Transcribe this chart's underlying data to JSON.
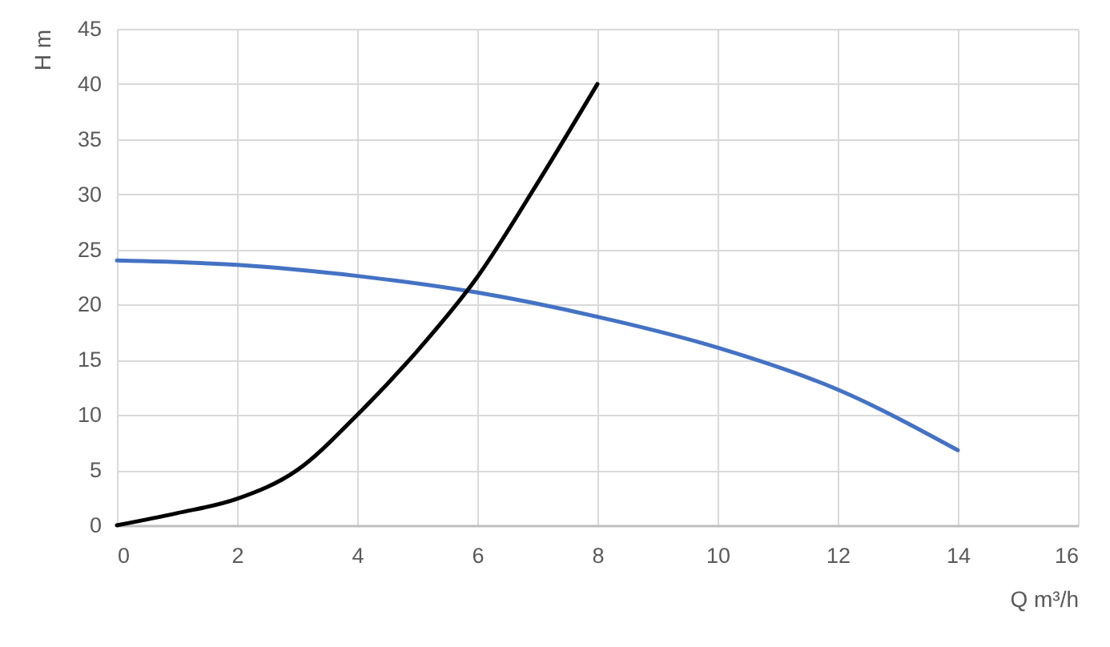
{
  "chart_data": {
    "type": "line",
    "xlabel": "Q m³/h",
    "ylabel": "H m",
    "series": [
      {
        "color": "#4472c4",
        "x": [
          0,
          2,
          4,
          6,
          8,
          10,
          12,
          14
        ],
        "values": [
          24,
          23.6,
          22.6,
          21.1,
          18.9,
          16.1,
          12.3,
          6.8
        ]
      },
      {
        "color": "#000000",
        "x": [
          0,
          1,
          2,
          3,
          4,
          5,
          6,
          7,
          8
        ],
        "values": [
          0,
          1.1,
          2.4,
          5.0,
          10,
          15.8,
          22.5,
          31,
          40
        ]
      }
    ],
    "xlim": [
      0,
      16
    ],
    "xticks": [
      0,
      2,
      4,
      6,
      8,
      10,
      12,
      14,
      16
    ],
    "ylim": [
      0,
      45
    ],
    "yticks": [
      0,
      5,
      10,
      15,
      20,
      25,
      30,
      35,
      40,
      45
    ],
    "grid": true
  }
}
